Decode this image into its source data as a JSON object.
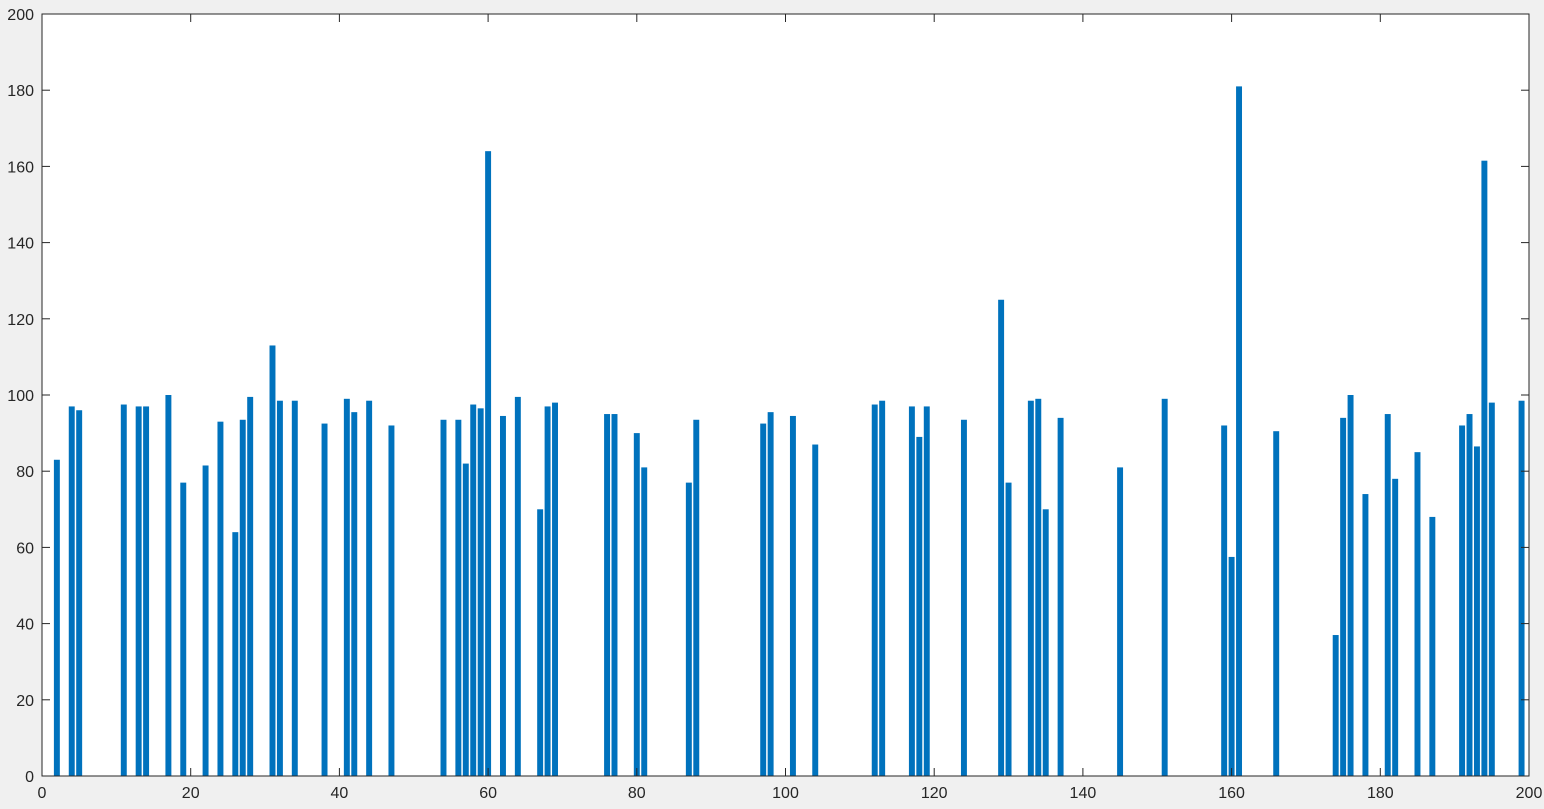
{
  "chart_data": {
    "type": "bar",
    "title": "",
    "xlabel": "",
    "ylabel": "",
    "xlim": [
      0,
      200
    ],
    "ylim": [
      0,
      200
    ],
    "xticks": [
      "0",
      "20",
      "40",
      "60",
      "80",
      "100",
      "120",
      "140",
      "160",
      "180",
      "200"
    ],
    "yticks": [
      "0",
      "20",
      "40",
      "60",
      "80",
      "100",
      "120",
      "140",
      "160",
      "180",
      "200"
    ],
    "grid": false,
    "colors": {
      "bar": "#0072bd",
      "axis": "#262626",
      "plot_bg": "#ffffff",
      "figure_bg": "#f0f0f0"
    },
    "x": [
      2,
      4,
      5,
      11,
      13,
      14,
      17,
      19,
      22,
      24,
      26,
      27,
      28,
      31,
      32,
      34,
      38,
      41,
      42,
      44,
      47,
      54,
      56,
      57,
      58,
      59,
      60,
      62,
      64,
      67,
      68,
      69,
      76,
      77,
      80,
      81,
      87,
      88,
      97,
      98,
      101,
      104,
      112,
      113,
      117,
      118,
      119,
      124,
      129,
      130,
      133,
      134,
      135,
      137,
      145,
      151,
      159,
      160,
      161,
      166,
      174,
      175,
      176,
      178,
      181,
      182,
      185,
      187,
      191,
      192,
      193,
      194,
      195,
      199
    ],
    "values": [
      83,
      97,
      96,
      97.5,
      97,
      97,
      100,
      77,
      81.5,
      93,
      64,
      93.5,
      99.5,
      113,
      98.5,
      98.5,
      92.5,
      99,
      95.5,
      98.5,
      92,
      93.5,
      93.5,
      82,
      97.5,
      96.5,
      164,
      94.5,
      99.5,
      70,
      97,
      98,
      95,
      95,
      90,
      81,
      77,
      93.5,
      92.5,
      95.5,
      94.5,
      87,
      97.5,
      98.5,
      97,
      89,
      97,
      93.5,
      125,
      77,
      98.5,
      99,
      70,
      94,
      81,
      99,
      92,
      57.5,
      181,
      90.5,
      37,
      94,
      100,
      74,
      95,
      78,
      85,
      68,
      92,
      95,
      86.5,
      161.5,
      98,
      98.5
    ]
  }
}
